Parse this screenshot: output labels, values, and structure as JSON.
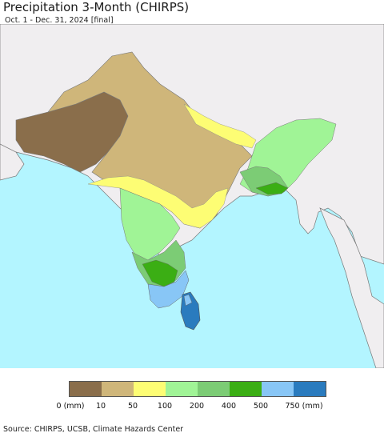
{
  "header": {
    "title": "Precipitation 3-Month (CHIRPS)",
    "subtitle": "Oct. 1 - Dec. 31, 2024 [final]"
  },
  "legend": {
    "colors": [
      "#8a6e4b",
      "#cfb67a",
      "#fdfd74",
      "#a0f496",
      "#7ccc75",
      "#3bae14",
      "#88c6f6",
      "#2a7bbe"
    ],
    "labels": [
      "0 (mm)",
      "10",
      "50",
      "100",
      "200",
      "400",
      "500",
      "750 (mm)"
    ]
  },
  "footer": {
    "source": "Source: CHIRPS, UCSB, Climate Hazards Center"
  },
  "map_colors": {
    "ocean": "#b3f5ff",
    "land_outside": "#f0eef0",
    "border": "#777777"
  }
}
